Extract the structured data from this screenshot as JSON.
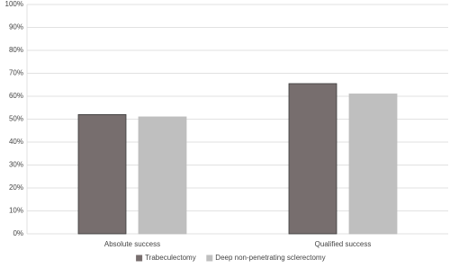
{
  "chart_data": {
    "type": "bar",
    "categories": [
      "Absolute success",
      "Qualified success"
    ],
    "series": [
      {
        "name": "Trabeculectomy",
        "color": "#776e6e",
        "values": [
          52,
          65.5
        ]
      },
      {
        "name": "Deep non-penetrating sclerectomy",
        "color": "#bfbfbf",
        "values": [
          51,
          61
        ]
      }
    ],
    "ylim": [
      0,
      100
    ],
    "yticks": [
      {
        "value": 0,
        "label": "0%"
      },
      {
        "value": 10,
        "label": "10%"
      },
      {
        "value": 20,
        "label": "20%"
      },
      {
        "value": 30,
        "label": "30%"
      },
      {
        "value": 40,
        "label": "40%"
      },
      {
        "value": 50,
        "label": "50%"
      },
      {
        "value": 60,
        "label": "60%"
      },
      {
        "value": 70,
        "label": "70%"
      },
      {
        "value": 80,
        "label": "80%"
      },
      {
        "value": 90,
        "label": "90%"
      },
      {
        "value": 100,
        "label": "100%"
      }
    ],
    "grid": true,
    "legend": "bottom"
  }
}
